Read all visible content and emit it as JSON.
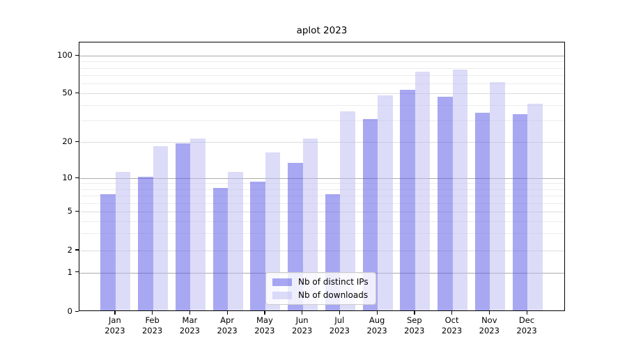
{
  "title": "aplot 2023",
  "chart_data": {
    "type": "bar",
    "title": "aplot 2023",
    "categories": [
      "Jan 2023",
      "Feb 2023",
      "Mar 2023",
      "Apr 2023",
      "May 2023",
      "Jun 2023",
      "Jul 2023",
      "Aug 2023",
      "Sep 2023",
      "Oct 2023",
      "Nov 2023",
      "Dec 2023"
    ],
    "series": [
      {
        "name": "Nb of distinct IPs",
        "color": "rgba(81,81,229,0.5)",
        "color_hex": "#a8a8f2",
        "values": [
          7,
          10,
          19,
          8,
          9,
          13,
          7,
          30,
          52,
          46,
          34,
          33
        ]
      },
      {
        "name": "Nb of downloads",
        "color": "rgba(185,185,241,0.5)",
        "color_hex": "#dcdcf8",
        "values": [
          11,
          18,
          21,
          11,
          16,
          21,
          35,
          47,
          73,
          76,
          60,
          40
        ]
      }
    ],
    "xlabel": "",
    "ylabel": "",
    "yscale": "symlog",
    "ylim": [
      0,
      130
    ],
    "yticks_labeled": [
      100,
      50,
      20,
      10,
      5,
      2,
      1,
      0
    ],
    "yticks_major_grid": [
      100,
      10,
      1
    ],
    "yticks_minor": [
      90,
      80,
      70,
      60,
      40,
      30,
      9,
      8,
      7,
      6,
      4,
      3
    ],
    "grid": true,
    "legend_position": "lower center"
  }
}
